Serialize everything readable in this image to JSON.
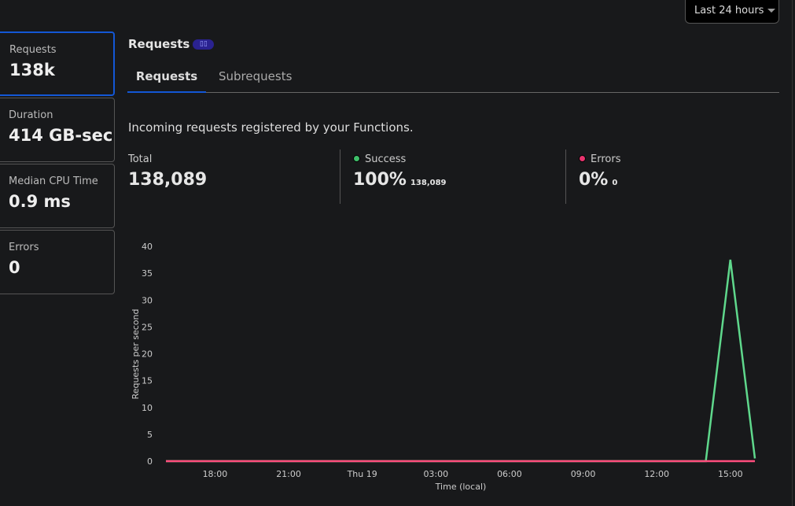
{
  "time_range": {
    "label": "Last 24 hours"
  },
  "sidebar": {
    "cards": [
      {
        "label": "Requests",
        "value": "138k"
      },
      {
        "label": "Duration",
        "value": "414 GB-sec"
      },
      {
        "label": "Median CPU Time",
        "value": "0.9 ms"
      },
      {
        "label": "Errors",
        "value": "0"
      }
    ]
  },
  "main": {
    "title": "Requests",
    "tabs": [
      {
        "label": "Requests"
      },
      {
        "label": "Subrequests"
      }
    ],
    "description": "Incoming requests registered by your Functions.",
    "stats": {
      "total": {
        "label": "Total",
        "value": "138,089"
      },
      "success": {
        "label": "Success",
        "value": "100%",
        "count": "138,089",
        "color": "#3fbf6a"
      },
      "errors": {
        "label": "Errors",
        "value": "0%",
        "count": "0",
        "color": "#e8336e"
      }
    }
  },
  "chart_data": {
    "type": "line",
    "xlabel": "Time (local)",
    "ylabel": "Requests per second",
    "ylim": [
      0,
      40
    ],
    "yticks": [
      0,
      5,
      10,
      15,
      20,
      25,
      30,
      35,
      40
    ],
    "x_hours_range": [
      0,
      24
    ],
    "xticks": [
      {
        "h": 2,
        "label": "18:00"
      },
      {
        "h": 5,
        "label": "21:00"
      },
      {
        "h": 8,
        "label": "Thu 19"
      },
      {
        "h": 11,
        "label": "03:00"
      },
      {
        "h": 14,
        "label": "06:00"
      },
      {
        "h": 17,
        "label": "09:00"
      },
      {
        "h": 20,
        "label": "12:00"
      },
      {
        "h": 23,
        "label": "15:00"
      }
    ],
    "series": [
      {
        "name": "Success",
        "color": "#5fd88c",
        "x": [
          0,
          1,
          2,
          3,
          4,
          5,
          6,
          7,
          8,
          9,
          10,
          11,
          12,
          13,
          14,
          15,
          16,
          17,
          18,
          19,
          20,
          21,
          22,
          23,
          24
        ],
        "values": [
          0,
          0,
          0,
          0,
          0,
          0,
          0,
          0,
          0,
          0,
          0,
          0,
          0,
          0,
          0,
          0,
          0,
          0,
          0,
          0,
          0,
          0,
          0,
          37.5,
          0.5
        ]
      },
      {
        "name": "Errors",
        "color": "#ff4d7d",
        "x": [
          0,
          24
        ],
        "values": [
          0,
          0
        ]
      }
    ]
  }
}
